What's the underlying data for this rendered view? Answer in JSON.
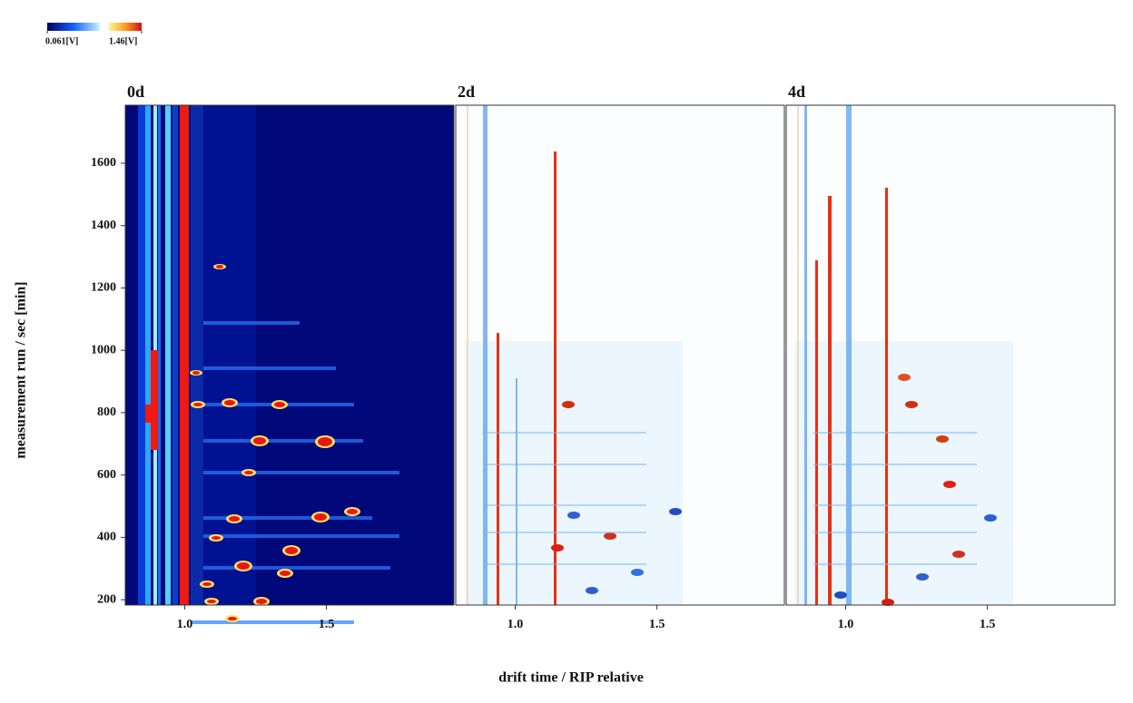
{
  "chart_data": [
    {
      "type": "heatmap",
      "title": "0d",
      "theme": "dark",
      "x_label": "drift time / RIP relative",
      "y_label": "measurement run / sec [min]",
      "colorbar_ticks": [
        {
          "value": 0.061,
          "label": "0.061[V]"
        },
        {
          "value": 1.46,
          "label": "1.46[V]"
        }
      ],
      "xlim": [
        0.79,
        1.95
      ],
      "xticks": [
        {
          "value": 1,
          "label": "1.0"
        },
        1.5
      ],
      "ylim": [
        183,
        1786
      ],
      "yticks": [
        200,
        400,
        600,
        800,
        1000,
        1200,
        1400,
        1600
      ]
    },
    {
      "type": "heatmap",
      "title": "2d",
      "theme": "difference",
      "xlim": [
        0.79,
        1.95
      ],
      "xticks": [
        {
          "value": 1,
          "label": "1.0"
        },
        1.5
      ],
      "ylim": [
        183,
        1786
      ]
    },
    {
      "type": "heatmap",
      "title": "4d",
      "theme": "difference",
      "xlim": [
        0.79,
        1.95
      ],
      "xticks": [
        {
          "value": 1,
          "label": "1.0"
        },
        1.5
      ],
      "ylim": [
        183,
        1786
      ]
    }
  ]
}
